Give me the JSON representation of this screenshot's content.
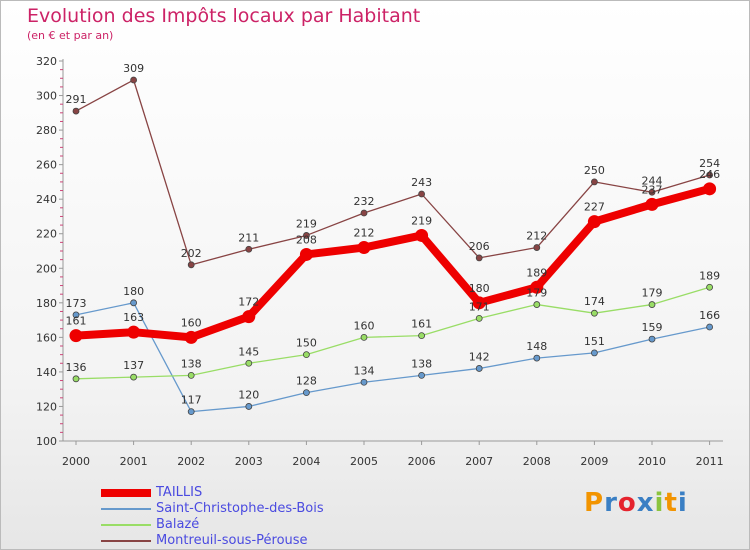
{
  "title": "Evolution des Impôts locaux par Habitant",
  "subtitle": "(en € et par an)",
  "logo_text": "Proxiti",
  "logo_colors": [
    "#f29400",
    "#3a7fc4",
    "#e5232d",
    "#3a7fc4",
    "#8bc43f",
    "#f29400",
    "#3a7fc4"
  ],
  "chart_data": {
    "type": "line",
    "x": [
      "2000",
      "2001",
      "2002",
      "2003",
      "2004",
      "2005",
      "2006",
      "2007",
      "2008",
      "2009",
      "2010",
      "2011"
    ],
    "ylim": [
      100,
      320
    ],
    "yticks": [
      "100",
      "120",
      "140",
      "160",
      "180",
      "200",
      "220",
      "240",
      "260",
      "280",
      "300",
      "320"
    ],
    "grid": false,
    "legend_position": "bottom-left",
    "series": [
      {
        "name": "TAILLIS",
        "color": "#ee0000",
        "emphasis": true,
        "values": [
          161,
          163,
          160,
          172,
          208,
          212,
          219,
          180,
          189,
          227,
          237,
          246
        ],
        "labels": [
          "161",
          "163",
          "160",
          "172",
          "208",
          "212",
          "219",
          "180",
          "189",
          "227",
          "237",
          "246"
        ]
      },
      {
        "name": "Saint-Christophe-des-Bois",
        "color": "#6699cc",
        "emphasis": false,
        "values": [
          173,
          180,
          117,
          120,
          128,
          134,
          138,
          142,
          148,
          151,
          159,
          166
        ],
        "labels": [
          "173",
          "180",
          "117",
          "120",
          "128",
          "134",
          "138",
          "142",
          "148",
          "151",
          "159",
          "166"
        ]
      },
      {
        "name": "Balazé",
        "color": "#99dd66",
        "emphasis": false,
        "values": [
          136,
          137,
          138,
          145,
          150,
          160,
          161,
          171,
          179,
          174,
          179,
          189
        ],
        "labels": [
          "136",
          "137",
          "138",
          "145",
          "150",
          "160",
          "161",
          "171",
          "179",
          "174",
          "179",
          "189"
        ]
      },
      {
        "name": "Montreuil-sous-Pérouse",
        "color": "#884444",
        "emphasis": false,
        "values": [
          291,
          309,
          202,
          211,
          219,
          232,
          243,
          206,
          212,
          250,
          244,
          254
        ],
        "labels": [
          "291",
          "309",
          "202",
          "211",
          "219",
          "232",
          "243",
          "206",
          "212",
          "250",
          "244",
          "254"
        ]
      }
    ]
  }
}
